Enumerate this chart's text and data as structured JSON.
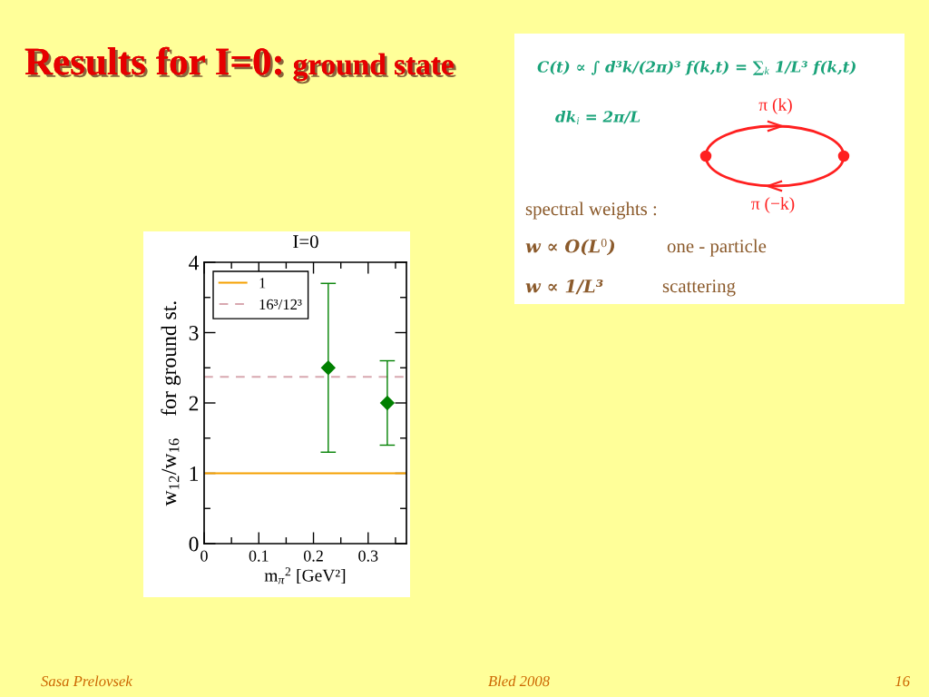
{
  "chart_data": {
    "type": "scatter",
    "title": "Results for I=0:",
    "subtitle": "ground state",
    "xlabel": "m$_{π}$$^{2}$ [GeV²]",
    "ylabel": "w$_{12}$/w$_{16}$    for ground st.",
    "annotations": [
      "I=0",
      "C(t) ∝ ∫ d³k/(2π)³ f(k,t) = ∑$_{k}$ 1/L³ f(k,t)",
      "dk$_{i}$ = 2π/L",
      "π (k)",
      "π (−k)",
      "spectral weights :",
      "w ∝ O(L$^{0}$)",
      "one - particle",
      "w ∝ 1/L³",
      "scattering",
      "Sasa Prelovsek",
      "Bled 2008",
      "16"
    ],
    "series": [
      {
        "type": "line",
        "name": "1",
        "color": "#f5a000",
        "line_style": "solid",
        "marker": "none",
        "x": [
          0,
          0.37
        ],
        "values": [
          1,
          1
        ]
      },
      {
        "type": "line",
        "name": "16³/12³",
        "color": "#d8a8b0",
        "line_style": "dashed",
        "marker": "none",
        "x": [
          0,
          0.37
        ],
        "values": [
          2.37,
          2.37
        ]
      },
      {
        "color": "#008000",
        "x": [
          0.227,
          0.335
        ],
        "values": [
          2.5,
          2.0
        ],
        "errors": [
          1.2,
          0.6
        ]
      }
    ],
    "marker": "diamond",
    "xlim": [
      0,
      0.37
    ],
    "xticks": [
      0,
      {
        "value": 0.05,
        "label": null
      },
      0.1,
      {
        "value": 0.15,
        "label": null
      },
      0.2,
      {
        "value": 0.25,
        "label": null
      },
      0.3,
      {
        "value": 0.35,
        "label": null
      }
    ],
    "ylim": [
      0,
      4
    ],
    "yticks": [
      0,
      {
        "value": 0.5,
        "label": null
      },
      1,
      {
        "value": 1.5,
        "label": null
      },
      2,
      {
        "value": 2.5,
        "label": null
      },
      3,
      {
        "value": 3.5,
        "label": null
      },
      4
    ],
    "legend": "top left",
    "grid": false
  }
}
